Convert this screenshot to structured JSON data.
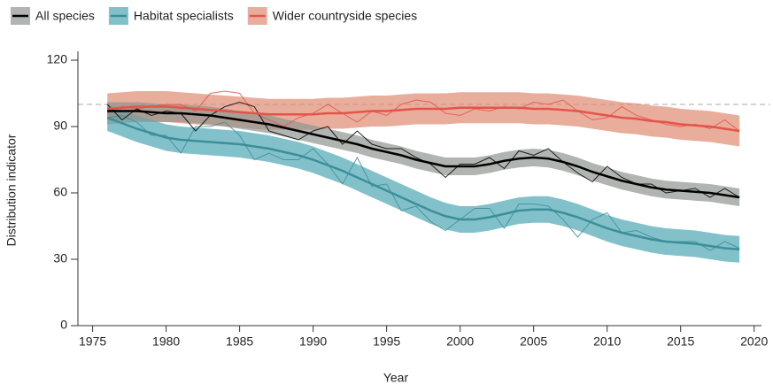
{
  "chart_data": {
    "type": "line",
    "x_label": "Year",
    "y_label": "Distribution indicator",
    "x": [
      1976,
      1977,
      1978,
      1979,
      1980,
      1981,
      1982,
      1983,
      1984,
      1985,
      1986,
      1987,
      1988,
      1989,
      1990,
      1991,
      1992,
      1993,
      1994,
      1995,
      1996,
      1997,
      1998,
      1999,
      2000,
      2001,
      2002,
      2003,
      2004,
      2005,
      2006,
      2007,
      2008,
      2009,
      2010,
      2011,
      2012,
      2013,
      2014,
      2015,
      2016,
      2017,
      2018,
      2019
    ],
    "xlim": [
      1974,
      2020.5
    ],
    "xticks": [
      1975,
      1980,
      1985,
      1990,
      1995,
      2000,
      2005,
      2010,
      2015,
      2020
    ],
    "ylim": [
      0,
      124
    ],
    "yticks": [
      0,
      30,
      60,
      90,
      120
    ],
    "reference_line": 100,
    "series": [
      {
        "name": "Wider countryside species",
        "color": "#e5534b",
        "band_color": "#e08a72",
        "values": [
          96,
          99,
          98,
          99,
          100,
          100,
          97,
          105,
          106,
          105,
          96,
          93,
          90,
          94,
          96,
          100,
          96,
          92,
          97,
          95,
          100,
          102,
          101,
          96,
          95,
          98,
          97,
          99,
          98,
          101,
          100,
          102,
          97,
          93,
          94,
          99,
          95,
          93,
          91,
          90,
          91,
          89,
          93,
          88
        ],
        "trend": [
          98,
          98.5,
          99,
          99,
          99,
          98.5,
          98,
          97.5,
          97,
          96.5,
          96,
          95.5,
          95.5,
          95.5,
          95.5,
          96,
          96,
          96.5,
          97,
          97,
          97.5,
          98,
          98,
          98,
          98.5,
          98.5,
          98.5,
          98.5,
          98.5,
          98,
          98,
          97.5,
          97,
          96,
          95,
          94,
          93.5,
          92.5,
          92,
          91,
          90.5,
          90,
          89,
          88
        ],
        "lower": [
          91,
          91.5,
          92,
          92,
          92,
          91.5,
          91,
          90.5,
          90,
          89.5,
          89,
          88.5,
          88.5,
          88.5,
          88.5,
          89,
          89,
          89.5,
          90,
          90,
          90.5,
          91,
          91,
          91,
          91.5,
          91.5,
          91.5,
          91.5,
          91.5,
          91,
          91,
          90.5,
          90,
          89,
          88,
          87,
          86.5,
          85.5,
          85,
          84,
          83.5,
          83,
          82,
          81
        ],
        "upper": [
          105,
          105.5,
          106,
          106,
          106,
          105.5,
          105,
          104.5,
          104,
          103.5,
          103,
          102.5,
          102.5,
          102.5,
          102.5,
          103,
          103,
          103.5,
          104,
          104,
          104.5,
          105,
          105,
          105,
          105.5,
          105.5,
          105.5,
          105.5,
          105.5,
          105,
          105,
          104.5,
          104,
          103,
          102,
          101,
          100.5,
          99.5,
          99,
          98,
          97.5,
          97,
          96,
          95
        ]
      },
      {
        "name": "Habitat specialists",
        "color": "#3b8f99",
        "band_color": "#4fa7b3",
        "values": [
          94,
          95,
          92,
          86,
          86,
          78,
          90,
          90,
          92,
          86,
          75,
          78,
          75,
          75,
          80,
          73,
          64,
          76,
          63,
          64,
          52,
          54,
          47,
          43,
          48,
          53,
          53,
          44,
          55,
          55,
          54,
          48,
          40,
          48,
          51,
          42,
          43,
          40,
          38,
          38,
          38,
          34,
          38,
          35
        ],
        "trend": [
          94,
          91.5,
          89,
          87,
          85,
          84,
          83.5,
          83,
          82.5,
          82,
          81,
          80,
          78.5,
          77,
          75,
          72.5,
          70,
          67,
          64,
          61,
          58,
          55,
          52,
          49.5,
          48,
          48,
          49,
          50.5,
          52,
          52.5,
          52.5,
          51,
          49,
          46.5,
          44,
          42,
          40.5,
          39,
          38,
          37.5,
          37,
          36,
          35,
          34.5
        ],
        "lower": [
          88,
          85.5,
          83,
          81,
          79,
          78,
          77.5,
          77,
          76.5,
          76,
          75,
          74,
          72.5,
          71,
          69,
          66.5,
          64,
          61,
          58,
          55,
          52,
          49,
          46,
          43.5,
          42,
          42,
          43,
          44.5,
          46,
          46.5,
          46.5,
          45,
          43,
          40.5,
          38,
          36,
          34.5,
          33,
          32,
          31.5,
          31,
          30,
          29,
          28.5
        ],
        "upper": [
          100,
          97.5,
          95,
          93,
          91,
          90,
          89.5,
          89,
          88.5,
          88,
          87,
          86,
          84.5,
          83,
          81,
          78.5,
          76,
          73,
          70,
          67,
          64,
          61,
          58,
          55.5,
          54,
          54,
          55,
          56.5,
          58,
          58.5,
          58.5,
          57,
          55,
          52.5,
          50,
          48,
          46.5,
          45,
          44,
          43.5,
          43,
          42,
          41,
          40.5
        ]
      },
      {
        "name": "All species",
        "color": "#000000",
        "band_color": "#8f9690",
        "values": [
          100,
          93,
          98,
          95,
          97,
          96,
          88,
          95,
          99,
          101,
          99,
          88,
          86,
          84,
          88,
          90,
          82,
          88,
          82,
          80,
          80,
          76,
          73,
          67,
          73,
          73,
          76,
          71,
          79,
          77,
          80,
          74,
          69,
          65,
          72,
          67,
          64,
          64,
          60,
          61,
          62,
          58,
          62,
          58
        ],
        "trend": [
          97,
          97,
          97,
          96.5,
          96,
          96,
          95.5,
          95,
          94,
          93,
          92,
          91,
          89.5,
          88,
          86.5,
          85,
          83.5,
          82,
          80,
          78.5,
          77,
          75,
          73.5,
          72,
          72,
          72,
          73,
          74.5,
          75.5,
          76,
          75.5,
          74,
          72,
          69.5,
          67.5,
          65.5,
          64,
          62.5,
          61.5,
          61,
          60.5,
          60,
          59,
          58
        ],
        "lower": [
          93,
          93,
          93,
          92.5,
          92,
          92,
          91.5,
          91,
          90,
          89,
          88,
          87,
          85.5,
          84,
          82.5,
          81,
          79.5,
          78,
          76,
          74.5,
          73,
          71,
          69.5,
          68,
          68,
          68,
          69,
          70.5,
          71.5,
          72,
          71.5,
          70,
          68,
          65.5,
          63.5,
          61.5,
          60,
          58.5,
          57.5,
          57,
          56.5,
          56,
          55,
          54
        ],
        "upper": [
          101,
          101,
          101,
          100.5,
          100,
          100,
          99.5,
          99,
          98,
          97,
          96,
          95,
          93.5,
          92,
          90.5,
          89,
          87.5,
          86,
          84,
          82.5,
          81,
          79,
          77.5,
          76,
          76,
          76,
          77,
          78.5,
          79.5,
          80,
          79.5,
          78,
          76,
          73.5,
          71.5,
          69.5,
          68,
          66.5,
          65.5,
          65,
          64.5,
          64,
          63,
          62
        ]
      }
    ]
  }
}
